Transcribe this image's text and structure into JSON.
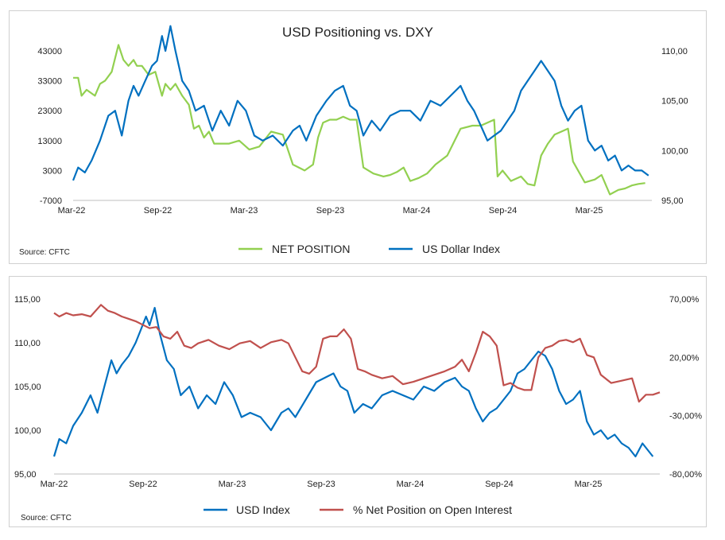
{
  "chart_data": [
    {
      "type": "line",
      "title": "USD Positioning vs. DXY",
      "source": "Source: CFTC",
      "legend_position": "bottom",
      "x_ticks": [
        "Mar-22",
        "Sep-22",
        "Mar-23",
        "Sep-23",
        "Mar-24",
        "Sep-24",
        "Mar-25"
      ],
      "y_left": {
        "ticks": [
          "43000",
          "33000",
          "23000",
          "13000",
          "3000",
          "-7000"
        ],
        "lim": [
          -7000,
          43000
        ]
      },
      "y_right": {
        "ticks": [
          "110,00",
          "105,00",
          "100,00",
          "95,00"
        ],
        "lim": [
          95,
          110
        ]
      },
      "x_range": [
        2022.17,
        2025.62
      ],
      "series": [
        {
          "name": "NET POSITION",
          "axis": "left",
          "color": "#92d050",
          "x": [
            2022.17,
            2022.2,
            2022.22,
            2022.25,
            2022.3,
            2022.33,
            2022.36,
            2022.4,
            2022.44,
            2022.47,
            2022.5,
            2022.53,
            2022.55,
            2022.58,
            2022.62,
            2022.66,
            2022.7,
            2022.72,
            2022.75,
            2022.78,
            2022.82,
            2022.86,
            2022.89,
            2022.92,
            2022.95,
            2022.98,
            2023.01,
            2023.05,
            2023.1,
            2023.16,
            2023.22,
            2023.28,
            2023.35,
            2023.42,
            2023.48,
            2023.55,
            2023.6,
            2023.63,
            2023.66,
            2023.7,
            2023.74,
            2023.78,
            2023.82,
            2023.86,
            2023.9,
            2023.96,
            2024.02,
            2024.06,
            2024.1,
            2024.14,
            2024.18,
            2024.23,
            2024.28,
            2024.33,
            2024.4,
            2024.48,
            2024.55,
            2024.6,
            2024.64,
            2024.68,
            2024.7,
            2024.73,
            2024.78,
            2024.84,
            2024.88,
            2024.92,
            2024.96,
            2025.0,
            2025.04,
            2025.08,
            2025.12,
            2025.15,
            2025.18,
            2025.2,
            2025.22,
            2025.25,
            2025.28,
            2025.32,
            2025.37,
            2025.42,
            2025.46,
            2025.5,
            2025.54,
            2025.58
          ],
          "values": [
            34000,
            34000,
            28000,
            30000,
            28000,
            32000,
            33000,
            36000,
            45000,
            40000,
            38000,
            40000,
            38000,
            38000,
            35000,
            36000,
            28000,
            32000,
            30000,
            32000,
            28000,
            25000,
            17000,
            18000,
            14000,
            16000,
            12000,
            12000,
            12000,
            13000,
            10000,
            11000,
            16000,
            15000,
            5000,
            3000,
            5000,
            14000,
            19000,
            20000,
            20000,
            21000,
            20000,
            20000,
            4000,
            2000,
            1000,
            1500,
            2500,
            4000,
            -500,
            500,
            2000,
            5000,
            8000,
            17000,
            18000,
            18000,
            19000,
            20000,
            1000,
            3000,
            -500,
            1000,
            -1500,
            -2000,
            8000,
            12000,
            15000,
            16000,
            17000,
            6000,
            3000,
            1000,
            -1000,
            -500,
            0,
            1500,
            -5000,
            -3500,
            -3000,
            -2000,
            -1500,
            -1200
          ]
        },
        {
          "name": "US Dollar Index",
          "axis": "right",
          "color": "#0070c0",
          "x": [
            2022.17,
            2022.2,
            2022.24,
            2022.28,
            2022.33,
            2022.38,
            2022.42,
            2022.46,
            2022.5,
            2022.53,
            2022.56,
            2022.6,
            2022.64,
            2022.67,
            2022.7,
            2022.72,
            2022.75,
            2022.78,
            2022.82,
            2022.86,
            2022.9,
            2022.95,
            2023.0,
            2023.05,
            2023.1,
            2023.15,
            2023.2,
            2023.25,
            2023.3,
            2023.36,
            2023.42,
            2023.48,
            2023.52,
            2023.56,
            2023.62,
            2023.68,
            2023.73,
            2023.78,
            2023.82,
            2023.86,
            2023.9,
            2023.95,
            2024.0,
            2024.06,
            2024.12,
            2024.18,
            2024.24,
            2024.3,
            2024.36,
            2024.42,
            2024.48,
            2024.52,
            2024.56,
            2024.6,
            2024.64,
            2024.68,
            2024.72,
            2024.76,
            2024.8,
            2024.84,
            2024.88,
            2024.92,
            2024.96,
            2025.0,
            2025.04,
            2025.08,
            2025.12,
            2025.16,
            2025.2,
            2025.24,
            2025.28,
            2025.32,
            2025.36,
            2025.4,
            2025.44,
            2025.48,
            2025.52,
            2025.56,
            2025.6
          ],
          "values": [
            97.0,
            98.3,
            97.8,
            99.0,
            101.0,
            103.5,
            104.0,
            101.5,
            105.0,
            106.5,
            105.5,
            107.0,
            108.5,
            109.0,
            111.5,
            110.0,
            112.5,
            110.0,
            107.0,
            106.0,
            104.0,
            104.5,
            102.0,
            104.0,
            102.5,
            105.0,
            104.0,
            101.5,
            101.0,
            101.5,
            100.5,
            102.0,
            102.5,
            101.0,
            103.5,
            105.0,
            106.0,
            106.5,
            104.5,
            104.0,
            101.5,
            103.0,
            102.0,
            103.5,
            104.0,
            104.0,
            103.0,
            105.0,
            104.5,
            105.5,
            106.5,
            105.0,
            104.0,
            102.5,
            101.0,
            101.5,
            102.0,
            103.0,
            104.0,
            106.0,
            107.0,
            108.0,
            109.0,
            108.0,
            107.0,
            104.5,
            103.0,
            104.0,
            104.5,
            101.0,
            100.0,
            100.5,
            99.0,
            99.5,
            98.0,
            98.5,
            98.0,
            98.0,
            97.5
          ]
        }
      ]
    },
    {
      "type": "line",
      "title": "",
      "source": "Source: CFTC",
      "legend_position": "bottom",
      "x_ticks": [
        "Mar-22",
        "Sep-22",
        "Mar-23",
        "Sep-23",
        "Mar-24",
        "Sep-24",
        "Mar-25"
      ],
      "y_left": {
        "ticks": [
          "115,00",
          "110,00",
          "105,00",
          "100,00",
          "95,00"
        ],
        "lim": [
          95,
          115
        ]
      },
      "y_right": {
        "ticks": [
          "70,00%",
          "20,00%",
          "-30,00%",
          "-80,00%"
        ],
        "lim": [
          -80,
          70
        ]
      },
      "x_range": [
        2022.17,
        2025.66
      ],
      "series": [
        {
          "name": "USD Index",
          "axis": "left",
          "color": "#0070c0",
          "x": [
            2022.17,
            2022.2,
            2022.24,
            2022.28,
            2022.33,
            2022.38,
            2022.42,
            2022.46,
            2022.5,
            2022.53,
            2022.56,
            2022.6,
            2022.64,
            2022.67,
            2022.7,
            2022.72,
            2022.75,
            2022.78,
            2022.82,
            2022.86,
            2022.9,
            2022.95,
            2023.0,
            2023.05,
            2023.1,
            2023.15,
            2023.2,
            2023.25,
            2023.3,
            2023.36,
            2023.42,
            2023.48,
            2023.52,
            2023.56,
            2023.62,
            2023.68,
            2023.73,
            2023.78,
            2023.82,
            2023.86,
            2023.9,
            2023.95,
            2024.0,
            2024.06,
            2024.12,
            2024.18,
            2024.24,
            2024.3,
            2024.36,
            2024.42,
            2024.48,
            2024.52,
            2024.56,
            2024.6,
            2024.64,
            2024.68,
            2024.72,
            2024.76,
            2024.8,
            2024.84,
            2024.88,
            2024.92,
            2024.96,
            2025.0,
            2025.04,
            2025.08,
            2025.12,
            2025.16,
            2025.2,
            2025.24,
            2025.28,
            2025.32,
            2025.36,
            2025.4,
            2025.44,
            2025.48,
            2025.52,
            2025.56,
            2025.62
          ],
          "values": [
            97.0,
            99.0,
            98.5,
            100.5,
            102.0,
            104.0,
            102.0,
            105.0,
            108.0,
            106.5,
            107.5,
            108.5,
            110.0,
            111.5,
            113.0,
            112.0,
            114.0,
            111.0,
            108.0,
            107.0,
            104.0,
            105.0,
            102.5,
            104.0,
            103.0,
            105.5,
            104.0,
            101.5,
            102.0,
            101.5,
            100.0,
            102.0,
            102.5,
            101.5,
            103.5,
            105.5,
            106.0,
            106.5,
            105.0,
            104.5,
            102.0,
            103.0,
            102.5,
            104.0,
            104.5,
            104.0,
            103.5,
            105.0,
            104.5,
            105.5,
            106.0,
            105.0,
            104.5,
            102.5,
            101.0,
            102.0,
            102.5,
            103.5,
            104.5,
            106.5,
            107.0,
            108.0,
            109.0,
            108.5,
            107.0,
            104.5,
            103.0,
            103.5,
            104.5,
            101.0,
            99.5,
            100.0,
            99.0,
            99.5,
            98.5,
            98.0,
            97.0,
            98.5,
            97.0
          ]
        },
        {
          "name": "% Net Position on Open Interest",
          "axis": "right",
          "color": "#c0504d",
          "x": [
            2022.17,
            2022.2,
            2022.24,
            2022.28,
            2022.33,
            2022.38,
            2022.44,
            2022.48,
            2022.52,
            2022.56,
            2022.6,
            2022.64,
            2022.68,
            2022.72,
            2022.76,
            2022.8,
            2022.84,
            2022.88,
            2022.92,
            2022.96,
            2023.0,
            2023.06,
            2023.12,
            2023.18,
            2023.24,
            2023.3,
            2023.36,
            2023.42,
            2023.48,
            2023.52,
            2023.56,
            2023.6,
            2023.64,
            2023.68,
            2023.72,
            2023.76,
            2023.8,
            2023.84,
            2023.88,
            2023.92,
            2023.96,
            2024.0,
            2024.06,
            2024.12,
            2024.18,
            2024.24,
            2024.3,
            2024.36,
            2024.42,
            2024.48,
            2024.52,
            2024.56,
            2024.6,
            2024.64,
            2024.68,
            2024.72,
            2024.76,
            2024.8,
            2024.84,
            2024.88,
            2024.92,
            2024.96,
            2025.0,
            2025.04,
            2025.08,
            2025.12,
            2025.16,
            2025.2,
            2025.24,
            2025.28,
            2025.32,
            2025.38,
            2025.44,
            2025.5,
            2025.54,
            2025.58,
            2025.62,
            2025.66
          ],
          "values": [
            58,
            55,
            58,
            56,
            57,
            55,
            65,
            60,
            58,
            55,
            53,
            51,
            48,
            45,
            46,
            38,
            36,
            42,
            30,
            28,
            32,
            35,
            30,
            27,
            32,
            34,
            28,
            33,
            35,
            32,
            20,
            8,
            6,
            12,
            36,
            38,
            38,
            44,
            36,
            10,
            8,
            5,
            2,
            4,
            -3,
            -1,
            2,
            5,
            8,
            12,
            18,
            8,
            24,
            42,
            38,
            30,
            -4,
            -2,
            -6,
            -8,
            -8,
            20,
            28,
            30,
            34,
            35,
            33,
            36,
            22,
            20,
            5,
            -2,
            0,
            2,
            -18,
            -12,
            -12,
            -10
          ]
        }
      ]
    }
  ],
  "chart1": {
    "title": "USD Positioning vs. DXY",
    "source": "Source: CFTC",
    "legend": [
      "NET POSITION",
      "US Dollar Index"
    ]
  },
  "chart2": {
    "source": "Source: CFTC",
    "legend": [
      "USD Index",
      "% Net Position on Open Interest"
    ]
  }
}
